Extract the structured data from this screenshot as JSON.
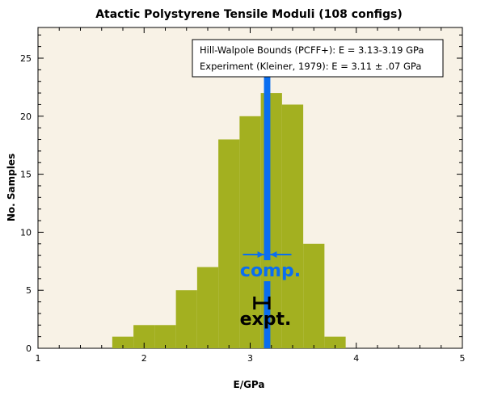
{
  "chart_data": {
    "type": "bar",
    "title": "Atactic Polystyrene Tensile Moduli (108 configs)",
    "xlabel": "E/GPa",
    "ylabel": "No. Samples",
    "xlim": [
      1,
      5
    ],
    "ylim": [
      0,
      27
    ],
    "xticks": [
      "1",
      "2",
      "3",
      "4",
      "5"
    ],
    "yticks": [
      "0",
      "5",
      "10",
      "15",
      "20",
      "25"
    ],
    "bin_edges": [
      1.7,
      1.9,
      2.1,
      2.3,
      2.5,
      2.7,
      2.9,
      3.1,
      3.3,
      3.5,
      3.7,
      3.9
    ],
    "values": [
      1,
      2,
      2,
      5,
      7,
      18,
      20,
      22,
      21,
      9,
      1
    ],
    "grid": false,
    "bar_color": "#a3b020",
    "background": "#f8f2e6",
    "computed_band": [
      3.13,
      3.19
    ],
    "computed_color": "#0a6ef0",
    "experiment": {
      "value": 3.11,
      "error": 0.07
    },
    "annotations": {
      "comp": "comp.",
      "expt": "expt."
    },
    "legend": {
      "position": "top-right",
      "lines": [
        "Hill-Walpole Bounds (PCFF+): E = 3.13-3.19 GPa",
        "Experiment (Kleiner, 1979): E = 3.11 ± .07 GPa"
      ]
    }
  }
}
